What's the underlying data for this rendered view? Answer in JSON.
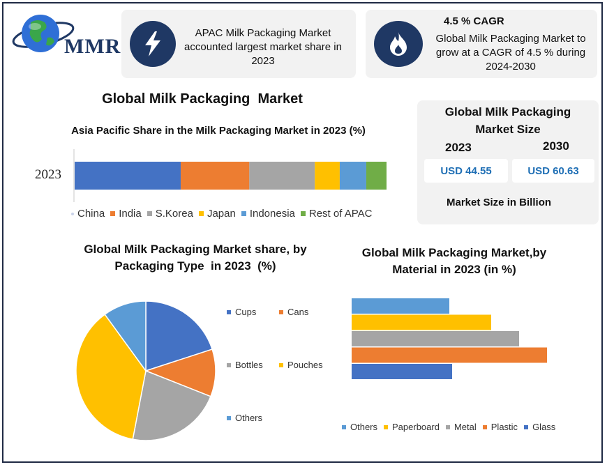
{
  "brand": {
    "logo_text": "MMR"
  },
  "info_cards": [
    {
      "icon": "lightning-icon",
      "title": "",
      "text": "APAC Milk Packaging Market accounted largest market share in 2023"
    },
    {
      "icon": "flame-icon",
      "title": "4.5 % CAGR",
      "text": "Global Milk Packaging Market to grow at a CAGR of 4.5 % during 2024-2030"
    }
  ],
  "main_title": "Global Milk Packaging  Market",
  "market_size": {
    "title": "Global Milk Packaging Market Size",
    "years": [
      "2023",
      "2030"
    ],
    "values": [
      "USD 44.55",
      "USD 60.63"
    ],
    "footer": "Market Size in Billion"
  },
  "colors": {
    "blue": "#4472c4",
    "orange": "#ed7d31",
    "gray": "#a5a5a5",
    "yellow": "#ffc000",
    "lightblue": "#5b9bd5",
    "green": "#70ad47",
    "dark_navy": "#1f3864",
    "value_text": "#1f6fb5"
  },
  "chart_data": [
    {
      "type": "bar",
      "orientation": "horizontal",
      "stacked": true,
      "title": "Asia Pacific Share in the Milk Packaging Market in 2023 (%)",
      "categories": [
        "2023"
      ],
      "series": [
        {
          "name": "China",
          "values": [
            34
          ],
          "color": "#4472c4"
        },
        {
          "name": "India",
          "values": [
            22
          ],
          "color": "#ed7d31"
        },
        {
          "name": "S.Korea",
          "values": [
            21
          ],
          "color": "#a5a5a5"
        },
        {
          "name": "Japan",
          "values": [
            8
          ],
          "color": "#ffc000"
        },
        {
          "name": "Indonesia",
          "values": [
            8.5
          ],
          "color": "#5b9bd5"
        },
        {
          "name": "Rest of APAC",
          "values": [
            6.5
          ],
          "color": "#70ad47"
        }
      ],
      "legend_position": "bottom"
    },
    {
      "type": "pie",
      "title": "Global Milk Packaging Market share, by Packaging Type  in 2023  (%)",
      "slices": [
        {
          "name": "Cups",
          "value": 20,
          "color": "#4472c4"
        },
        {
          "name": "Cans",
          "value": 11,
          "color": "#ed7d31"
        },
        {
          "name": "Bottles",
          "value": 22,
          "color": "#a5a5a5"
        },
        {
          "name": "Pouches",
          "value": 37,
          "color": "#ffc000"
        },
        {
          "name": "Others",
          "value": 10,
          "color": "#5b9bd5"
        }
      ],
      "legend_position": "right"
    },
    {
      "type": "bar",
      "orientation": "horizontal",
      "title": "Global Milk Packaging Market,by Material in 2023 (in %)",
      "categories": [
        "Glass",
        "Plastic",
        "Metal",
        "Paperboard",
        "Others"
      ],
      "values": [
        18,
        35,
        30,
        25,
        17.5
      ],
      "colors": [
        "#4472c4",
        "#ed7d31",
        "#a5a5a5",
        "#ffc000",
        "#5b9bd5"
      ],
      "xlim": [
        0,
        40
      ],
      "legend_position": "bottom"
    }
  ]
}
